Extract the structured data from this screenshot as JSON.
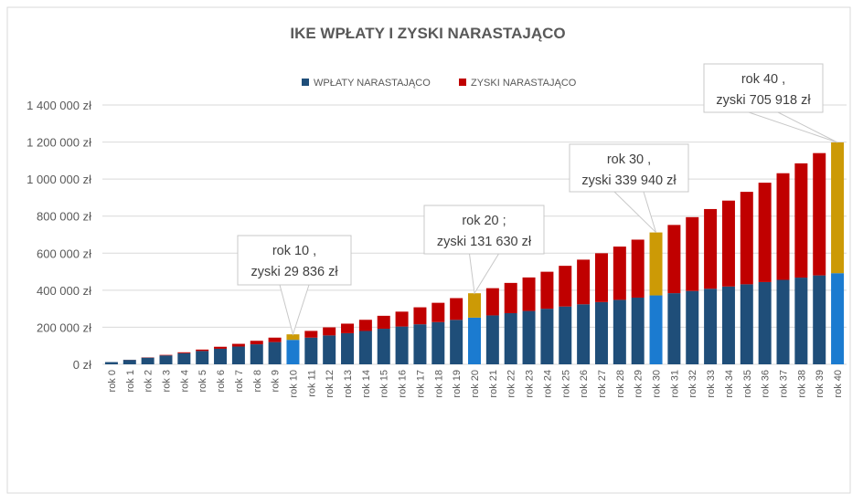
{
  "chart_data": {
    "type": "bar",
    "stacked": true,
    "title": "IKE WPŁATY I ZYSKI NARASTAJĄCO",
    "xlabel": "",
    "ylabel": "",
    "ylim": [
      0,
      1400000
    ],
    "yticks": [
      "0 zł",
      "200 000 zł",
      "400 000 zł",
      "600 000 zł",
      "800 000 zł",
      "1 000 000 zł",
      "1 200 000 zł",
      "1 400 000 zł"
    ],
    "ytick_values": [
      0,
      200000,
      400000,
      600000,
      800000,
      1000000,
      1200000,
      1400000
    ],
    "grid": true,
    "legend_position": "top",
    "categories": [
      "rok 0",
      "rok 1",
      "rok 2",
      "rok 3",
      "rok 4",
      "rok 5",
      "rok 6",
      "rok 7",
      "rok 8",
      "rok 9",
      "rok 10",
      "rok 11",
      "rok 12",
      "rok 13",
      "rok 14",
      "rok 15",
      "rok 16",
      "rok 17",
      "rok 18",
      "rok 19",
      "rok 20",
      "rok 21",
      "rok 22",
      "rok 23",
      "rok 24",
      "rok 25",
      "rok 26",
      "rok 27",
      "rok 28",
      "rok 29",
      "rok 30",
      "rok 31",
      "rok 32",
      "rok 33",
      "rok 34",
      "rok 35",
      "rok 36",
      "rok 37",
      "rok 38",
      "rok 39",
      "rok 40"
    ],
    "series": [
      {
        "name": "WPŁATY NARASTAJĄCO",
        "color": "#1F4E79",
        "highlight_color": "#1B7BD0",
        "values": [
          12000,
          24000,
          36000,
          48000,
          60000,
          72000,
          84000,
          96000,
          108000,
          120000,
          132000,
          144000,
          156000,
          168000,
          180000,
          192000,
          204000,
          216000,
          228000,
          240000,
          252000,
          264000,
          276000,
          288000,
          300000,
          312000,
          324000,
          336000,
          348000,
          360000,
          372000,
          384000,
          396000,
          408000,
          420000,
          432000,
          444000,
          456000,
          468000,
          480000,
          492000
        ]
      },
      {
        "name": "ZYSKI NARASTAJĄCO",
        "color": "#C00000",
        "highlight_color": "#CC9A06",
        "values": [
          0,
          480,
          1459,
          2958,
          4996,
          7596,
          10780,
          14571,
          18994,
          24073,
          29836,
          36310,
          43522,
          51503,
          60283,
          69894,
          80370,
          91745,
          104055,
          117337,
          131630,
          146976,
          163415,
          180991,
          199751,
          219741,
          241011,
          263611,
          287595,
          313019,
          339940,
          368418,
          398514,
          430295,
          463827,
          499180,
          536427,
          575644,
          616910,
          660306,
          705918
        ]
      }
    ],
    "highlighted_categories": [
      "rok 10",
      "rok 20",
      "rok 30",
      "rok 40"
    ],
    "annotations": [
      {
        "category": "rok 10",
        "line1": "rok 10 ,",
        "line2": "zyski 29 836 zł"
      },
      {
        "category": "rok 20",
        "line1": "rok 20 ;",
        "line2": "zyski 131 630 zł"
      },
      {
        "category": "rok 30",
        "line1": "rok 30 ,",
        "line2": "zyski 339 940 zł"
      },
      {
        "category": "rok 40",
        "line1": "rok 40 ,",
        "line2": "zyski 705 918 zł"
      }
    ]
  }
}
